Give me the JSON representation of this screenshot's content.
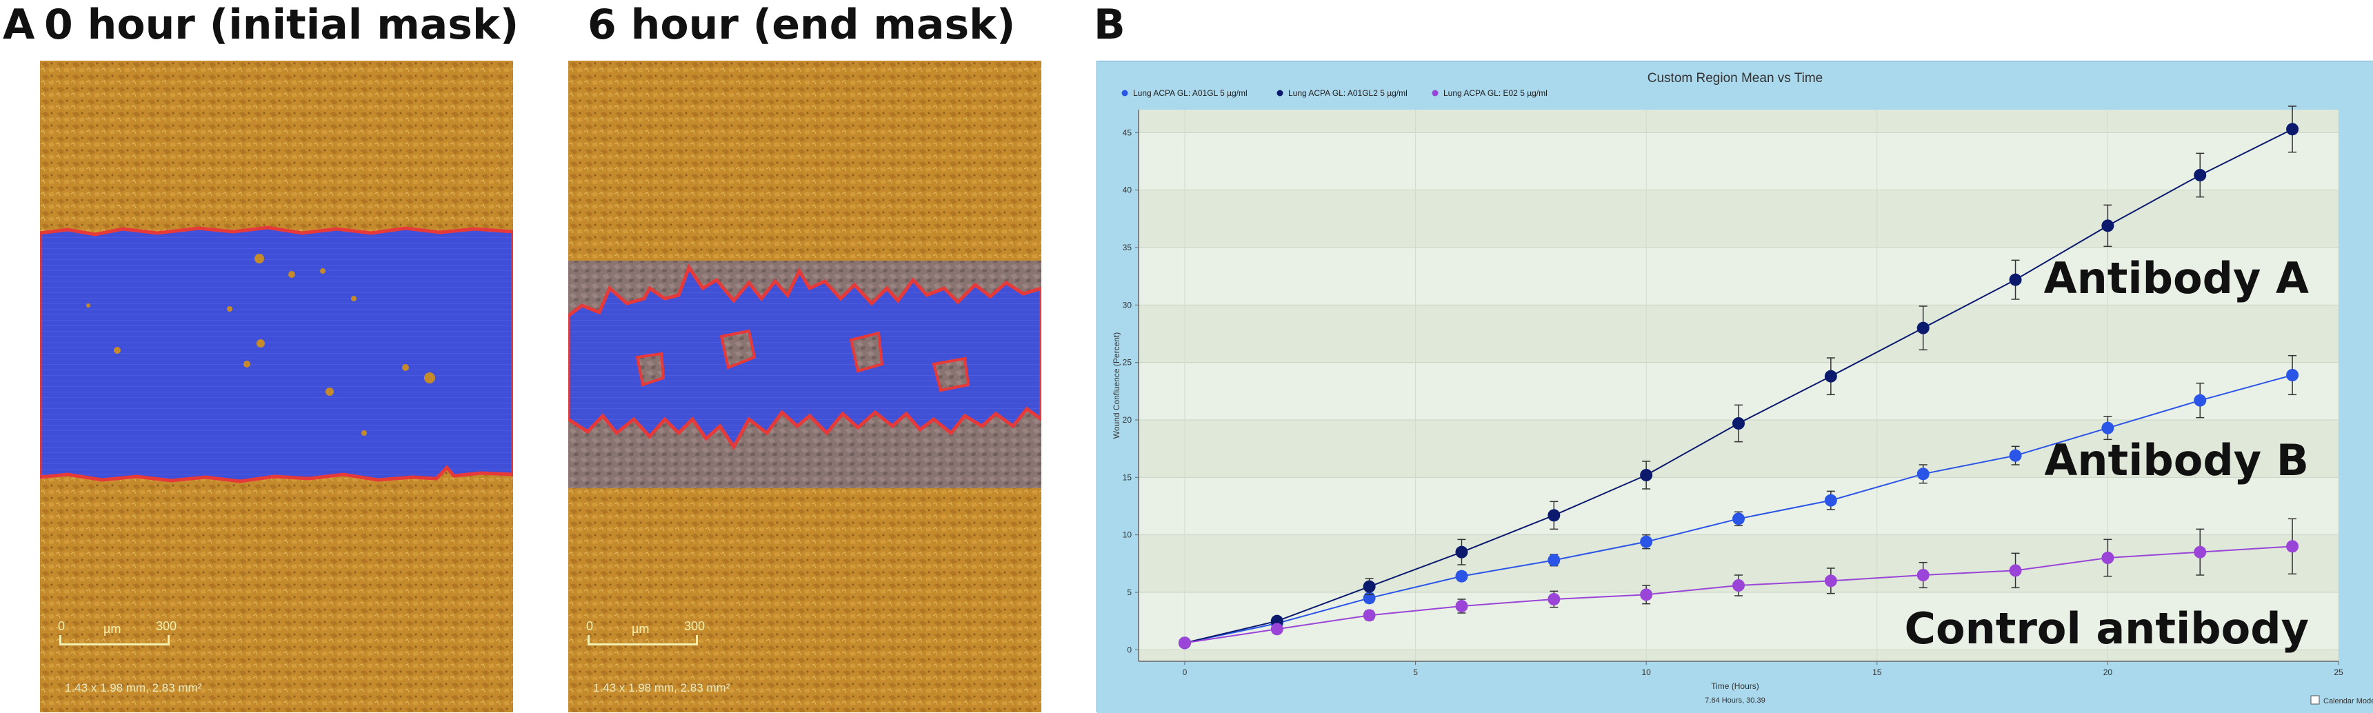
{
  "panel_a": {
    "letter": "A",
    "left_title": "0 hour (initial mask)",
    "right_title": "6 hour (end  mask)",
    "left_scale": {
      "unit": "µm",
      "left_tick": "0",
      "right_tick": "300",
      "meta": "1.43 x 1.98 mm, 2.83 mm²"
    },
    "right_scale": {
      "unit": "µm",
      "left_tick": "0",
      "right_tick": "300",
      "meta": "1.43 x 1.98 mm, 2.83 mm²"
    }
  },
  "panel_b": {
    "letter": "B",
    "big_labels": {
      "antibody_a": "Antibody A",
      "antibody_b": "Antibody B",
      "control": "Control antibody"
    },
    "status_text": "7.64 Hours, 30.39",
    "calendar_mode_label": "Calendar Mode"
  },
  "colors": {
    "series_a": "#0c1a6e",
    "series_b": "#2b55e6",
    "control": "#9a45d8",
    "mask_blue": "#3f4fd8",
    "mask_edge": "#e63a3a",
    "cells": "#c48a2c"
  },
  "chart_data": {
    "type": "line",
    "title": "Custom Region Mean vs Time",
    "xlabel": "Time (Hours)",
    "ylabel": "Wound Confluence (Percent)",
    "xlim": [
      -1,
      25
    ],
    "ylim": [
      -1,
      47
    ],
    "xticks": [
      0,
      5,
      10,
      15,
      20,
      25
    ],
    "yticks": [
      0,
      5,
      10,
      15,
      20,
      25,
      30,
      35,
      40,
      45
    ],
    "grid": true,
    "legend_position": "top-left",
    "x": [
      0,
      2,
      4,
      6,
      8,
      10,
      12,
      14,
      16,
      18,
      20,
      22,
      24
    ],
    "series": [
      {
        "name": "Lung ACPA GL: A01GL 5 µg/ml",
        "color": "#2b55e6",
        "values": [
          0.6,
          2.3,
          4.5,
          6.4,
          7.8,
          9.4,
          11.4,
          13.0,
          15.3,
          16.9,
          19.3,
          21.7,
          23.9
        ],
        "errors": [
          0.2,
          0.3,
          0.4,
          0.4,
          0.5,
          0.6,
          0.6,
          0.8,
          0.8,
          0.8,
          1.0,
          1.5,
          1.7
        ]
      },
      {
        "name": "Lung ACPA GL: A01GL2 5 µg/ml",
        "color": "#0c1a6e",
        "values": [
          0.6,
          2.5,
          5.5,
          8.5,
          11.7,
          15.2,
          19.7,
          23.8,
          28.0,
          32.2,
          36.9,
          41.3,
          45.3
        ],
        "errors": [
          0.2,
          0.3,
          0.7,
          1.1,
          1.2,
          1.2,
          1.6,
          1.6,
          1.9,
          1.7,
          1.8,
          1.9,
          2.0
        ]
      },
      {
        "name": "Lung ACPA GL: E02 5 µg/ml",
        "color": "#9a45d8",
        "values": [
          0.6,
          1.8,
          3.0,
          3.8,
          4.4,
          4.8,
          5.6,
          6.0,
          6.5,
          6.9,
          8.0,
          8.5,
          9.0
        ],
        "errors": [
          0.2,
          0.3,
          0.4,
          0.6,
          0.7,
          0.8,
          0.9,
          1.1,
          1.1,
          1.5,
          1.6,
          2.0,
          2.4
        ]
      }
    ]
  }
}
